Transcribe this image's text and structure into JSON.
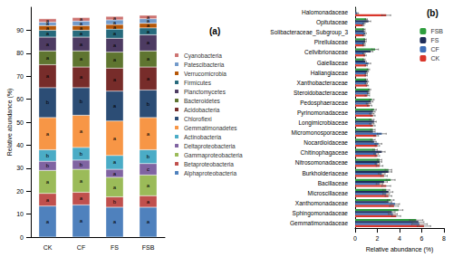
{
  "chart_data": [
    {
      "type": "bar",
      "stacked": true,
      "title": "(a)",
      "y_label": "Relative abundance (%)",
      "categories": [
        "CK",
        "CF",
        "FS",
        "FSB"
      ],
      "ylim": [
        0,
        100
      ],
      "yticks": [
        0,
        10,
        20,
        30,
        40,
        50,
        60,
        70,
        80,
        90
      ],
      "grid": false,
      "legend": "right",
      "series": [
        {
          "name": "Alphaproteobacteria",
          "color": "#4f81bd",
          "values": [
            13.5,
            14,
            13,
            13
          ],
          "letters": [
            "a",
            "a",
            "a",
            "a"
          ]
        },
        {
          "name": "Betaproteobacteria",
          "color": "#c0504d",
          "values": [
            5.5,
            5.5,
            4.5,
            5
          ],
          "letters": [
            "a",
            "a",
            "b",
            "a"
          ]
        },
        {
          "name": "Gammaproteobacteria",
          "color": "#9bbb59",
          "values": [
            10,
            10,
            8.5,
            9
          ],
          "letters": [
            "a",
            "a",
            "a",
            "a"
          ]
        },
        {
          "name": "Deltaproteobacteria",
          "color": "#8064a2",
          "values": [
            4,
            4,
            3.5,
            5
          ],
          "letters": [
            "b",
            "b",
            "a",
            "c"
          ]
        },
        {
          "name": "Actinobacteria",
          "color": "#4bacc6",
          "values": [
            5,
            5.5,
            6,
            6
          ],
          "letters": [
            "b",
            "b",
            "a",
            "b"
          ]
        },
        {
          "name": "Gemmatimonadetes",
          "color": "#f79646",
          "values": [
            14,
            14,
            15,
            14
          ],
          "letters": [
            "a",
            "a",
            "a",
            "a"
          ]
        },
        {
          "name": "Chloroflexi",
          "color": "#2c4d75",
          "values": [
            13,
            12,
            13,
            12
          ],
          "letters": [
            "b",
            "b",
            "a",
            "b"
          ]
        },
        {
          "name": "Acidobacteria",
          "color": "#772c2a",
          "values": [
            10,
            9,
            10,
            10
          ],
          "letters": [
            "a",
            "a",
            "a",
            "a"
          ]
        },
        {
          "name": "Bacteroidetes",
          "color": "#5f7530",
          "values": [
            6,
            7,
            7,
            7
          ],
          "letters": [
            "a",
            "a",
            "a",
            "a"
          ]
        },
        {
          "name": "Planctomycetes",
          "color": "#4d3b62",
          "values": [
            6,
            6,
            6,
            7
          ],
          "letters": [
            "a",
            "a",
            "a",
            "a"
          ]
        },
        {
          "name": "Firmicutes",
          "color": "#276a7c",
          "values": [
            3,
            3,
            4,
            3
          ],
          "letters": [
            "a",
            "a",
            "a",
            "a"
          ]
        },
        {
          "name": "Verrucomicrobia",
          "color": "#b65708",
          "values": [
            2,
            2,
            2,
            2
          ],
          "letters": [
            "a",
            "a",
            "a",
            "a"
          ]
        },
        {
          "name": "Patescibacteria",
          "color": "#729aca",
          "values": [
            1.5,
            2,
            2,
            2
          ],
          "letters": [
            "a",
            "a",
            "a",
            "a"
          ]
        },
        {
          "name": "Cyanobacteria",
          "color": "#cd7371",
          "values": [
            1.5,
            1.5,
            1.5,
            1.5
          ],
          "letters": [
            "a",
            "a",
            "a",
            "a"
          ]
        }
      ]
    },
    {
      "type": "bar",
      "orientation": "horizontal",
      "title": "(b)",
      "x_label": "Relative abundance (%)",
      "categories": [
        "Gemmatimonadaceae",
        "Sphingomonadaceae",
        "Xanthomonadaceae",
        "Microscillaceae",
        "Bacillaceae",
        "Burkholderiaceae",
        "Nitrosomonadaceae",
        "Chitinophagaceae",
        "Nocardioidaceae",
        "Micromonosporaceae",
        "Longimicrobiaceae",
        "Pyrinomonadaceae",
        "Pedosphaeraceae",
        "Steroidobacteraceae",
        "Xanthobacteraceae",
        "Haliangiaceae",
        "Gaiellaceae",
        "Cellvibrionaceae",
        "Pirellulaceae",
        "Solibacteraceae_Subgroup_3",
        "Opitutaceae",
        "Halomonadaceae"
      ],
      "xlim": [
        0,
        8
      ],
      "xticks": [
        0,
        2,
        4,
        6,
        8
      ],
      "grid": false,
      "legend": "upper right",
      "series": [
        {
          "name": "FSB",
          "color": "#2e9e3e",
          "values": [
            5.5,
            3.9,
            3.2,
            2.8,
            3.2,
            3.0,
            2.2,
            1.8,
            1.6,
            1.6,
            1.5,
            1.7,
            1.5,
            1.3,
            1.0,
            1.2,
            0.8,
            1.8,
            0.9,
            0.8,
            1.0,
            0.05
          ],
          "errors": [
            0.6,
            0.4,
            0.3,
            0.3,
            0.4,
            0.3,
            0.2,
            0.2,
            0.2,
            0.2,
            0.2,
            0.2,
            0.2,
            0.1,
            0.1,
            0.1,
            0.1,
            0.3,
            0.1,
            0.1,
            0.1,
            0.02
          ]
        },
        {
          "name": "FS",
          "color": "#1f2d5a",
          "values": [
            5.7,
            3.3,
            3.0,
            3.0,
            2.6,
            3.0,
            2.2,
            2.4,
            1.7,
            1.6,
            1.7,
            1.6,
            1.4,
            1.2,
            1.1,
            1.1,
            0.9,
            1.4,
            0.9,
            0.8,
            1.2,
            0.05
          ],
          "errors": [
            0.5,
            0.3,
            0.3,
            0.4,
            0.3,
            0.3,
            0.2,
            0.3,
            0.2,
            0.2,
            0.2,
            0.2,
            0.2,
            0.1,
            0.1,
            0.1,
            0.1,
            0.2,
            0.1,
            0.1,
            0.2,
            0.02
          ]
        },
        {
          "name": "CF",
          "color": "#3e6fb8",
          "values": [
            5.8,
            3.4,
            3.6,
            2.8,
            2.2,
            2.4,
            2.0,
            1.9,
            2.1,
            2.4,
            1.5,
            1.5,
            1.2,
            1.2,
            1.0,
            1.0,
            1.2,
            0.8,
            0.8,
            0.9,
            0.8,
            0.2
          ],
          "errors": [
            0.7,
            0.4,
            0.4,
            0.3,
            0.3,
            0.3,
            0.2,
            0.2,
            0.3,
            0.4,
            0.2,
            0.2,
            0.2,
            0.1,
            0.1,
            0.1,
            0.2,
            0.1,
            0.1,
            0.1,
            0.1,
            0.1
          ]
        },
        {
          "name": "CK",
          "color": "#d9362b",
          "values": [
            6.2,
            3.7,
            3.5,
            3.0,
            2.8,
            2.6,
            2.2,
            2.0,
            2.0,
            1.9,
            1.6,
            1.6,
            1.3,
            1.1,
            1.1,
            1.0,
            1.0,
            0.9,
            0.8,
            0.8,
            0.7,
            2.8
          ],
          "errors": [
            0.6,
            0.4,
            0.4,
            0.3,
            0.4,
            0.3,
            0.3,
            0.2,
            0.2,
            0.2,
            0.2,
            0.2,
            0.2,
            0.2,
            0.1,
            0.1,
            0.1,
            0.1,
            0.1,
            0.1,
            0.1,
            0.4
          ]
        }
      ]
    }
  ]
}
